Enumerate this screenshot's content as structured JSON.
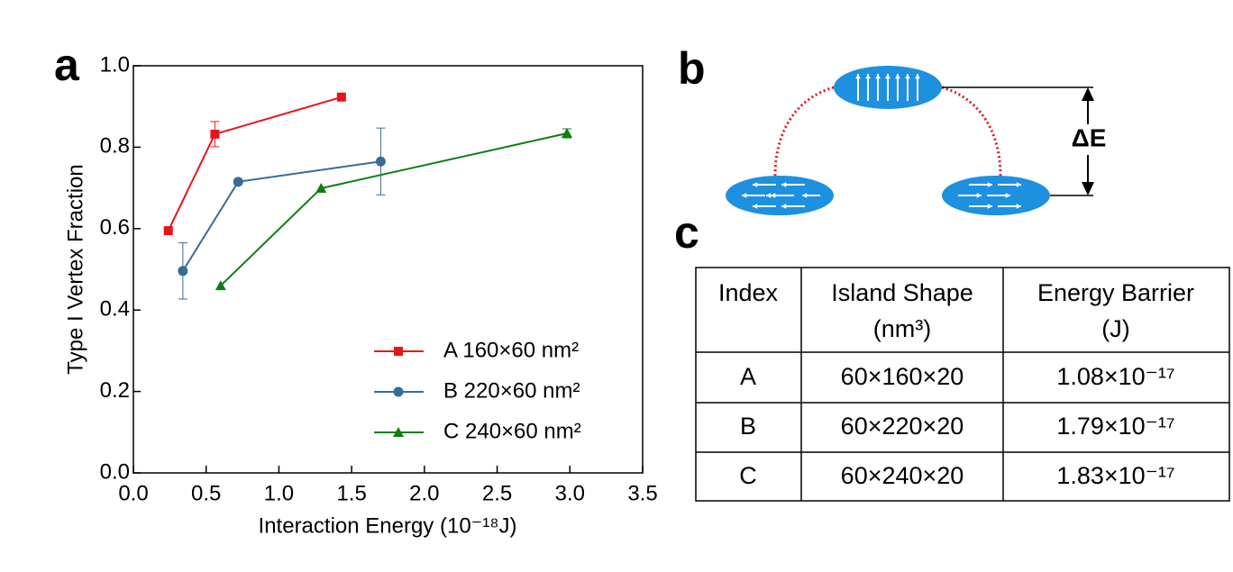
{
  "panel_labels": [
    "a",
    "b",
    "c"
  ],
  "chart_data": {
    "type": "line",
    "xlabel": "Interaction Energy (10⁻¹⁸J)",
    "ylabel": "Type I Vertex Fraction",
    "xlim": [
      0,
      3.5
    ],
    "xticks": [
      {
        "value": 0,
        "label": "0.0"
      },
      {
        "value": 0.5,
        "label": "0.5"
      },
      {
        "value": 1,
        "label": "1.0"
      },
      {
        "value": 1.5,
        "label": "1.5"
      },
      {
        "value": 2,
        "label": "2.0"
      },
      {
        "value": 2.5,
        "label": "2.5"
      },
      {
        "value": 3,
        "label": "3.0"
      },
      {
        "value": 3.5,
        "label": "3.5"
      }
    ],
    "ylim": [
      0,
      1
    ],
    "yticks": [
      {
        "value": 0,
        "label": "0.0"
      },
      {
        "value": 0.2,
        "label": "0.2"
      },
      {
        "value": 0.4,
        "label": "0.4"
      },
      {
        "value": 0.6,
        "label": "0.6"
      },
      {
        "value": 0.8,
        "label": "0.8"
      },
      {
        "value": 1,
        "label": "1.0"
      }
    ],
    "legend": "lower right",
    "series": [
      {
        "name": "A 160×60 nm²",
        "color": "#e8141c",
        "marker": "square",
        "x": [
          0.24,
          0.56,
          1.43
        ],
        "values": [
          0.595,
          0.832,
          0.923
        ],
        "errors": [
          null,
          0.031,
          null
        ]
      },
      {
        "name": "B 220×60 nm²",
        "color": "#3a6a9a",
        "marker": "circle",
        "x": [
          0.34,
          0.72,
          1.7
        ],
        "values": [
          0.496,
          0.715,
          0.765
        ],
        "errors": [
          0.069,
          null,
          0.082
        ]
      },
      {
        "name": "C 240×60 nm²",
        "color": "#0c7f10",
        "marker": "triangle",
        "x": [
          0.6,
          1.29,
          2.98
        ],
        "values": [
          0.46,
          0.699,
          0.834
        ],
        "errors": [
          null,
          null,
          0.011
        ]
      }
    ]
  },
  "diagram": {
    "energy_label": "ΔE"
  },
  "table": {
    "header": [
      [
        "Index"
      ],
      [
        "Island Shape",
        "(nm³)"
      ],
      [
        "Energy Barrier",
        "(J)"
      ]
    ],
    "rows": [
      [
        "A",
        "60×160×20",
        "1.08×10⁻¹⁷"
      ],
      [
        "B",
        "60×220×20",
        "1.79×10⁻¹⁷"
      ],
      [
        "C",
        "60×240×20",
        "1.83×10⁻¹⁷"
      ]
    ]
  }
}
